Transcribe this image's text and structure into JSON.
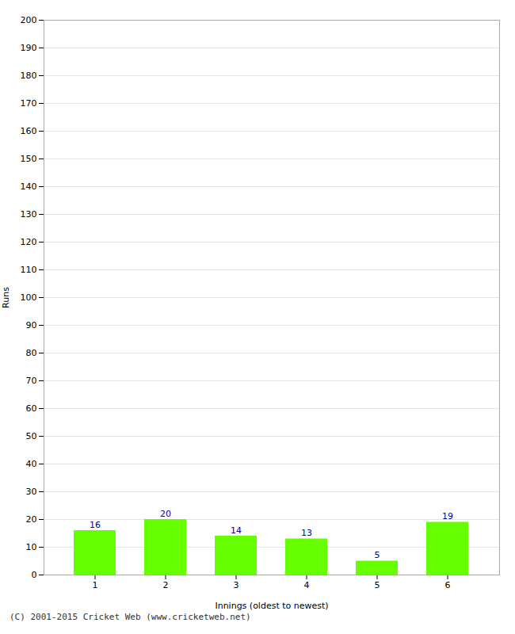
{
  "chart_data": {
    "type": "bar",
    "categories": [
      "1",
      "2",
      "3",
      "4",
      "5",
      "6"
    ],
    "values": [
      16,
      20,
      14,
      13,
      5,
      19
    ],
    "color": "#66ff00",
    "xlabel": "Innings (oldest to newest)",
    "ylabel": "Runs",
    "ylim": [
      0,
      200
    ],
    "yticks": [
      0,
      10,
      20,
      30,
      40,
      50,
      60,
      70,
      80,
      90,
      100,
      110,
      120,
      130,
      140,
      150,
      160,
      170,
      180,
      190,
      200
    ],
    "grid": true,
    "data_labels": true,
    "footer": "(C) 2001-2015 Cricket Web (www.cricketweb.net)"
  }
}
